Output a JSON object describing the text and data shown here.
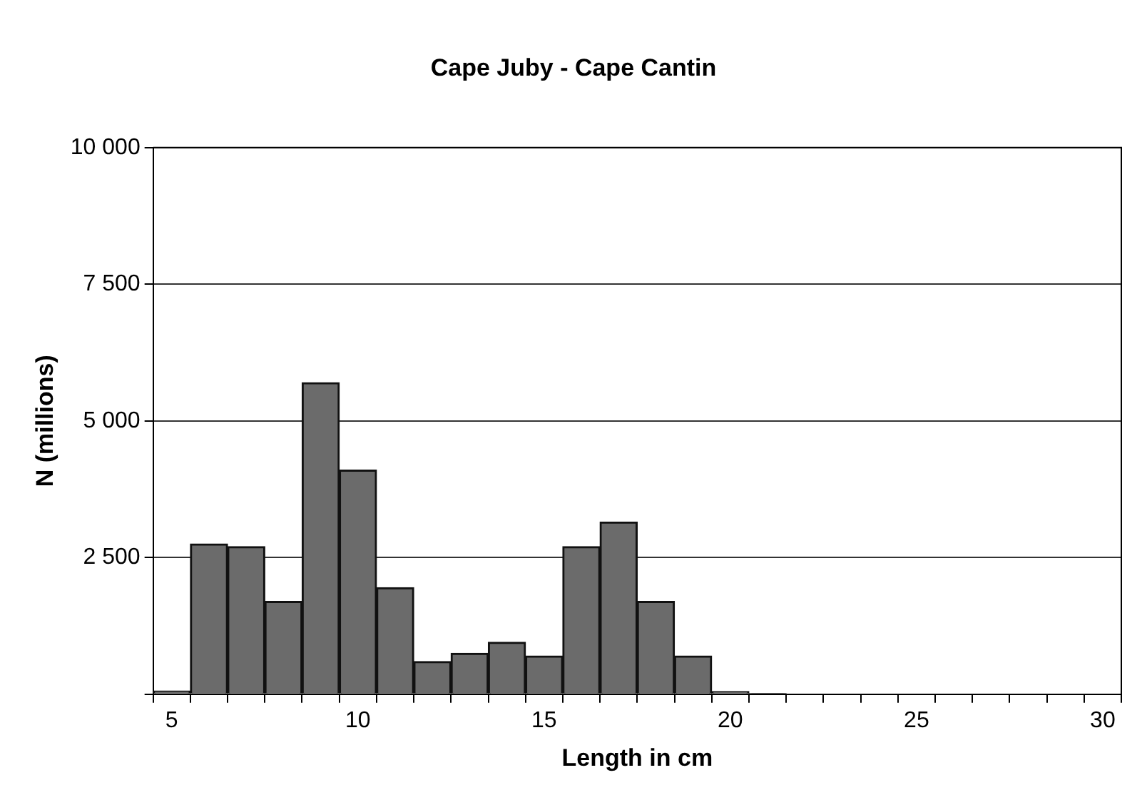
{
  "chart_data": {
    "type": "bar",
    "title": "Cape Juby - Cape Cantin",
    "xlabel": "Length in cm",
    "ylabel": "N (millions)",
    "categories": [
      "5",
      null,
      null,
      null,
      null,
      "10",
      null,
      null,
      null,
      null,
      "15",
      null,
      null,
      null,
      null,
      "20",
      null,
      null,
      null,
      null,
      "25",
      null,
      null,
      null,
      null,
      "30"
    ],
    "values": [
      60,
      2750,
      2700,
      1700,
      5700,
      4100,
      1950,
      600,
      750,
      950,
      700,
      2700,
      3150,
      1700,
      700,
      50,
      15,
      0,
      0,
      0,
      0,
      0,
      0,
      0,
      0,
      0
    ],
    "color": "#6b6b6b",
    "ylim": [
      0,
      10000
    ],
    "yticks": [
      {
        "value": 0,
        "label": null
      },
      {
        "value": 2500,
        "label": "2 500"
      },
      {
        "value": 5000,
        "label": "5 000"
      },
      {
        "value": 7500,
        "label": "7 500"
      },
      {
        "value": 10000,
        "label": "10 000"
      }
    ],
    "grid": "y",
    "legend": false
  }
}
